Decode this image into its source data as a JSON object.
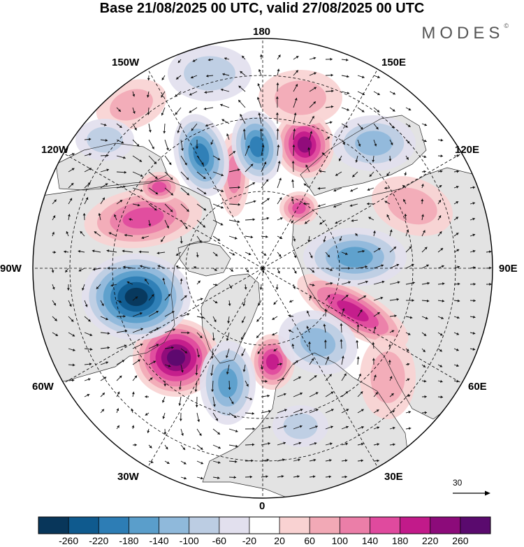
{
  "title": "Base 21/08/2025 00 UTC, valid 27/08/2025 00 UTC",
  "brand": {
    "name": "MODES",
    "mark": "©"
  },
  "longitude_labels": {
    "top": "180",
    "top_left": "150W",
    "top_right": "150E",
    "upper_left": "120W",
    "upper_right": "120E",
    "left": "90W",
    "right": "90E",
    "lower_left": "60W",
    "lower_right": "60E",
    "bottom_left": "30W",
    "bottom_right": "30E",
    "bottom": "0"
  },
  "reference_vector": {
    "label": "30"
  },
  "colorbar": {
    "ticks": [
      "-260",
      "-220",
      "-180",
      "-140",
      "-100",
      "-60",
      "-20",
      "20",
      "60",
      "100",
      "140",
      "180",
      "220",
      "260"
    ],
    "colors": [
      "#08365a",
      "#0f5a8e",
      "#2d7db5",
      "#5a9ecb",
      "#8fb9db",
      "#bccde3",
      "#e2e0ee",
      "#ffffff",
      "#f9d2d2",
      "#f2a9b6",
      "#eb7ea8",
      "#e04a9e",
      "#c21a8a",
      "#8c0b7a",
      "#5a0a6e"
    ]
  },
  "colors": {
    "land": "#e3e3e3",
    "ocean": "#ffffff",
    "coast": "#2b2b2b",
    "grid": "#000000"
  },
  "map": {
    "projection": "north-polar-stereographic",
    "field": "geopotential height anomaly",
    "vector_field": "wind"
  }
}
